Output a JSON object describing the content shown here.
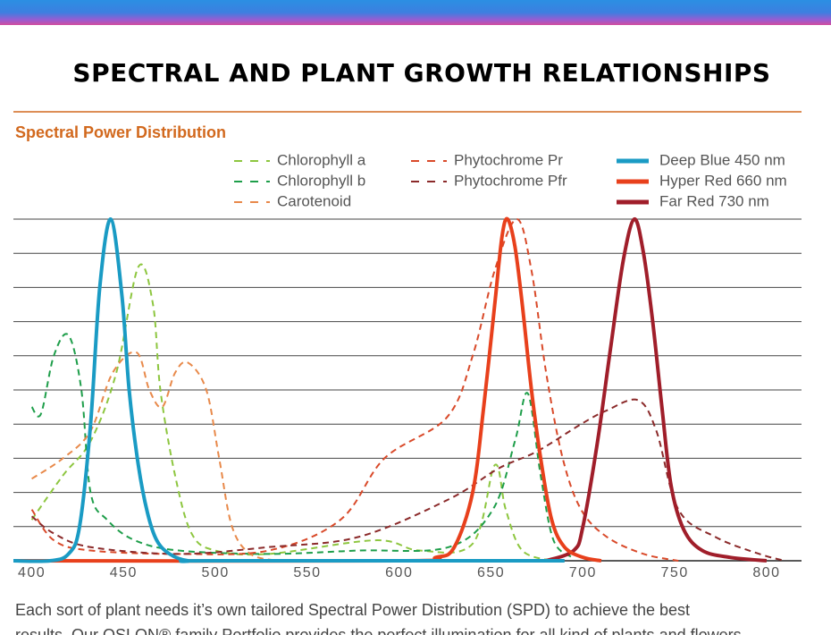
{
  "chart_data": {
    "type": "line",
    "title": "SPECTRAL AND PLANT GROWTH RELATIONSHIPS",
    "subtitle": "Spectral Power Distribution",
    "caption": "Each sort of plant needs it’s own tailored Spectral Power Distribution (SPD) to achieve the best",
    "caption_continued": "results. Our OSLON® family Portfolio provides the perfect illumination for all kind of plants and flowers",
    "xlim": [
      390,
      819
    ],
    "xticks": [
      400,
      450,
      500,
      550,
      600,
      650,
      700,
      750,
      800
    ],
    "ylim": [
      0,
      1
    ],
    "yticks": [
      0,
      0.1,
      0.2,
      0.3,
      0.4,
      0.5,
      0.6,
      0.7,
      0.8,
      0.9,
      1.0
    ],
    "grid": true,
    "series": [
      {
        "name": "Chlorophyll a",
        "color": "#8dc63f",
        "style": "dashed",
        "x": [
          400,
          417,
          432,
          446,
          458,
          466,
          470,
          478,
          487,
          500,
          529,
          587,
          611,
          640,
          652,
          658,
          667,
          684
        ],
        "values": [
          0.12,
          0.25,
          0.35,
          0.55,
          0.86,
          0.75,
          0.5,
          0.25,
          0.08,
          0.03,
          0.02,
          0.06,
          0.03,
          0.05,
          0.28,
          0.15,
          0.03,
          0
        ]
      },
      {
        "name": "Chlorophyll b",
        "color": "#1e9e4a",
        "style": "dashed",
        "x": [
          400,
          405,
          412,
          420,
          427,
          432,
          441,
          456,
          480,
          529,
          578,
          627,
          651,
          663,
          670,
          677,
          684,
          694
        ],
        "values": [
          0.45,
          0.43,
          0.6,
          0.66,
          0.5,
          0.2,
          0.12,
          0.06,
          0.03,
          0.02,
          0.03,
          0.04,
          0.15,
          0.35,
          0.49,
          0.25,
          0.06,
          0.01
        ]
      },
      {
        "name": "Carotenoid",
        "color": "#e8894a",
        "style": "dashed",
        "x": [
          400,
          417,
          432,
          444,
          457,
          464,
          471,
          478,
          485,
          495,
          502,
          509,
          519,
          534
        ],
        "values": [
          0.24,
          0.3,
          0.38,
          0.55,
          0.61,
          0.5,
          0.45,
          0.55,
          0.58,
          0.5,
          0.3,
          0.1,
          0.02,
          0
        ]
      },
      {
        "name": "Phytochrome Pr",
        "color": "#d94a2a",
        "style": "dashed",
        "x": [
          400,
          412,
          432,
          480,
          529,
          568,
          592,
          626,
          640,
          652,
          664,
          672,
          680,
          689,
          699,
          713,
          733,
          752
        ],
        "values": [
          0.15,
          0.06,
          0.03,
          0.02,
          0.03,
          0.12,
          0.3,
          0.42,
          0.6,
          0.85,
          1.0,
          0.85,
          0.55,
          0.3,
          0.15,
          0.07,
          0.02,
          0
        ]
      },
      {
        "name": "Phytochrome Pfr",
        "color": "#8b2a2a",
        "style": "dashed",
        "x": [
          400,
          412,
          432,
          480,
          529,
          578,
          627,
          654,
          675,
          699,
          713,
          730,
          740,
          752,
          772,
          796,
          810
        ],
        "values": [
          0.13,
          0.08,
          0.04,
          0.02,
          0.04,
          0.07,
          0.18,
          0.27,
          0.32,
          0.4,
          0.44,
          0.47,
          0.38,
          0.15,
          0.07,
          0.02,
          0
        ]
      },
      {
        "name": "Deep Blue 450 nm",
        "color": "#1a9bc4",
        "style": "solid",
        "x": [
          390,
          410,
          420,
          426,
          432,
          437,
          443,
          449,
          453,
          458,
          463,
          468,
          475,
          485,
          500,
          690
        ],
        "values": [
          0,
          0,
          0.02,
          0.1,
          0.4,
          0.8,
          1.0,
          0.78,
          0.5,
          0.28,
          0.14,
          0.06,
          0.02,
          0,
          0,
          0
        ]
      },
      {
        "name": "Hyper Red 660 nm",
        "color": "#e8401c",
        "style": "solid",
        "x": [
          390,
          600,
          620,
          630,
          640,
          646,
          652,
          656,
          659,
          663,
          667,
          672,
          677,
          683,
          690,
          700,
          710
        ],
        "values": [
          0,
          0,
          0.01,
          0.04,
          0.2,
          0.45,
          0.75,
          0.95,
          1.0,
          0.92,
          0.75,
          0.5,
          0.3,
          0.12,
          0.04,
          0.01,
          0
        ]
      },
      {
        "name": "Far Red 730 nm",
        "color": "#a01e2a",
        "style": "solid",
        "x": [
          680,
          695,
          700,
          708,
          715,
          722,
          728,
          733,
          738,
          743,
          748,
          755,
          765,
          780,
          800
        ],
        "values": [
          0,
          0.03,
          0.1,
          0.35,
          0.62,
          0.88,
          1.0,
          0.9,
          0.7,
          0.45,
          0.22,
          0.09,
          0.03,
          0.01,
          0
        ]
      }
    ]
  }
}
